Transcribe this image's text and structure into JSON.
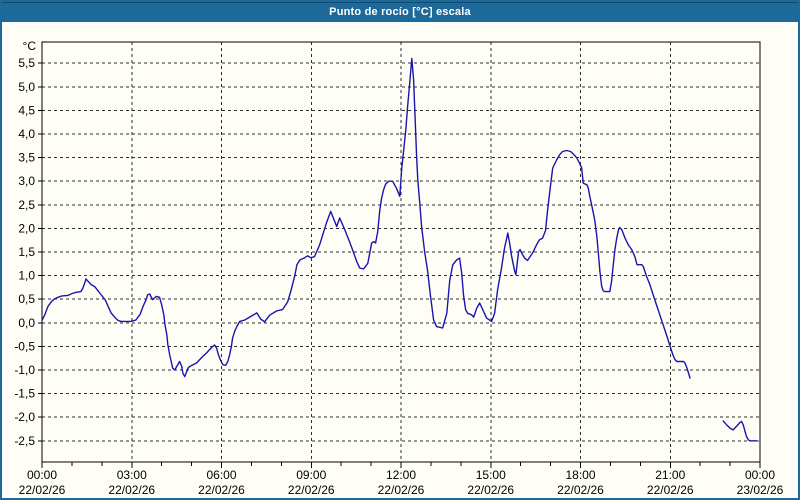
{
  "window": {
    "title": "Punto de rocío [°C] escala"
  },
  "colors": {
    "titlebar_bg": "#1d6a9a",
    "window_border": "#1d6a9a",
    "client_bg": "#fffef6",
    "line": "#1a15ab",
    "grid": "#2e2e2e",
    "axis": "#000000",
    "title_text": "#ffffff",
    "label_text": "#000000"
  },
  "chart_data": {
    "type": "line",
    "title": "Punto de rocío [°C] escala",
    "xlabel": "",
    "ylabel": "°C",
    "xlim": [
      0,
      24
    ],
    "ylim": [
      -2.95,
      5.95
    ],
    "grid": true,
    "legend": false,
    "minor_tick_hours": 1,
    "yticks": [
      {
        "v": 5.5,
        "label": "5,5"
      },
      {
        "v": 5.0,
        "label": "5,0"
      },
      {
        "v": 4.5,
        "label": "4,5"
      },
      {
        "v": 4.0,
        "label": "4,0"
      },
      {
        "v": 3.5,
        "label": "3,5"
      },
      {
        "v": 3.0,
        "label": "3,0"
      },
      {
        "v": 2.5,
        "label": "2,5"
      },
      {
        "v": 2.0,
        "label": "2,0"
      },
      {
        "v": 1.5,
        "label": "1,5"
      },
      {
        "v": 1.0,
        "label": "1,0"
      },
      {
        "v": 0.5,
        "label": "0,5"
      },
      {
        "v": 0.0,
        "label": "0,0"
      },
      {
        "v": -0.5,
        "label": "-0,5"
      },
      {
        "v": -1.0,
        "label": "-1,0"
      },
      {
        "v": -1.5,
        "label": "-1,5"
      },
      {
        "v": -2.0,
        "label": "-2,0"
      },
      {
        "v": -2.5,
        "label": "-2,5"
      }
    ],
    "xticks": [
      {
        "v": 0,
        "time": "00:00",
        "date": "22/02/26"
      },
      {
        "v": 3,
        "time": "03:00",
        "date": "22/02/26"
      },
      {
        "v": 6,
        "time": "06:00",
        "date": "22/02/26"
      },
      {
        "v": 9,
        "time": "09:00",
        "date": "22/02/26"
      },
      {
        "v": 12,
        "time": "12:00",
        "date": "22/02/26"
      },
      {
        "v": 15,
        "time": "15:00",
        "date": "22/02/26"
      },
      {
        "v": 18,
        "time": "18:00",
        "date": "22/02/26"
      },
      {
        "v": 21,
        "time": "21:00",
        "date": "22/02/26"
      },
      {
        "v": 24,
        "time": "00:00",
        "date": "23/02/26"
      }
    ],
    "series": [
      {
        "name": "Punto de rocío",
        "color": "#1a15ab",
        "segments": [
          [
            [
              0.0,
              0.05
            ],
            [
              0.1,
              0.18
            ],
            [
              0.2,
              0.35
            ],
            [
              0.33,
              0.46
            ],
            [
              0.43,
              0.51
            ],
            [
              0.53,
              0.54
            ],
            [
              0.67,
              0.57
            ],
            [
              0.87,
              0.58
            ],
            [
              0.97,
              0.61
            ],
            [
              1.1,
              0.64
            ],
            [
              1.3,
              0.66
            ],
            [
              1.37,
              0.74
            ],
            [
              1.44,
              0.87
            ],
            [
              1.47,
              0.93
            ],
            [
              1.54,
              0.88
            ],
            [
              1.64,
              0.81
            ],
            [
              1.77,
              0.76
            ],
            [
              1.87,
              0.68
            ],
            [
              1.97,
              0.6
            ],
            [
              2.11,
              0.49
            ],
            [
              2.21,
              0.35
            ],
            [
              2.31,
              0.21
            ],
            [
              2.44,
              0.11
            ],
            [
              2.54,
              0.05
            ],
            [
              2.64,
              0.03
            ],
            [
              2.97,
              0.03
            ],
            [
              3.14,
              0.06
            ],
            [
              3.28,
              0.18
            ],
            [
              3.38,
              0.35
            ],
            [
              3.48,
              0.49
            ],
            [
              3.53,
              0.59
            ],
            [
              3.6,
              0.61
            ],
            [
              3.7,
              0.49
            ],
            [
              3.82,
              0.56
            ],
            [
              3.93,
              0.54
            ],
            [
              4.0,
              0.38
            ],
            [
              4.07,
              0.17
            ],
            [
              4.11,
              -0.04
            ],
            [
              4.17,
              -0.25
            ],
            [
              4.21,
              -0.47
            ],
            [
              4.27,
              -0.68
            ],
            [
              4.33,
              -0.85
            ],
            [
              4.37,
              -0.96
            ],
            [
              4.44,
              -1.0
            ],
            [
              4.51,
              -0.92
            ],
            [
              4.6,
              -0.82
            ],
            [
              4.67,
              -0.92
            ],
            [
              4.71,
              -1.07
            ],
            [
              4.77,
              -1.14
            ],
            [
              4.84,
              -1.03
            ],
            [
              4.88,
              -0.96
            ],
            [
              4.95,
              -0.92
            ],
            [
              5.05,
              -0.89
            ],
            [
              5.17,
              -0.85
            ],
            [
              5.27,
              -0.78
            ],
            [
              5.38,
              -0.71
            ],
            [
              5.5,
              -0.64
            ],
            [
              5.6,
              -0.57
            ],
            [
              5.71,
              -0.5
            ],
            [
              5.77,
              -0.47
            ],
            [
              5.84,
              -0.54
            ],
            [
              5.88,
              -0.64
            ],
            [
              5.94,
              -0.75
            ],
            [
              6.01,
              -0.85
            ],
            [
              6.05,
              -0.89
            ],
            [
              6.14,
              -0.9
            ],
            [
              6.21,
              -0.82
            ],
            [
              6.27,
              -0.68
            ],
            [
              6.33,
              -0.5
            ],
            [
              6.37,
              -0.32
            ],
            [
              6.44,
              -0.18
            ],
            [
              6.51,
              -0.08
            ],
            [
              6.61,
              0.03
            ],
            [
              6.78,
              0.06
            ],
            [
              6.94,
              0.12
            ],
            [
              7.18,
              0.21
            ],
            [
              7.31,
              0.08
            ],
            [
              7.44,
              0.02
            ],
            [
              7.61,
              0.16
            ],
            [
              7.84,
              0.25
            ],
            [
              8.04,
              0.28
            ],
            [
              8.21,
              0.44
            ],
            [
              8.33,
              0.7
            ],
            [
              8.45,
              1.0
            ],
            [
              8.52,
              1.23
            ],
            [
              8.62,
              1.33
            ],
            [
              8.78,
              1.38
            ],
            [
              8.88,
              1.42
            ],
            [
              8.98,
              1.38
            ],
            [
              9.11,
              1.4
            ],
            [
              9.28,
              1.65
            ],
            [
              9.51,
              2.12
            ],
            [
              9.65,
              2.36
            ],
            [
              9.78,
              2.15
            ],
            [
              9.85,
              2.04
            ],
            [
              9.95,
              2.22
            ],
            [
              10.12,
              1.97
            ],
            [
              10.28,
              1.72
            ],
            [
              10.38,
              1.55
            ],
            [
              10.52,
              1.3
            ],
            [
              10.62,
              1.16
            ],
            [
              10.75,
              1.14
            ],
            [
              10.89,
              1.26
            ],
            [
              11.02,
              1.69
            ],
            [
              11.09,
              1.72
            ],
            [
              11.15,
              1.69
            ],
            [
              11.22,
              1.93
            ],
            [
              11.29,
              2.39
            ],
            [
              11.35,
              2.64
            ],
            [
              11.42,
              2.82
            ],
            [
              11.49,
              2.94
            ],
            [
              11.59,
              3.0
            ],
            [
              11.72,
              3.0
            ],
            [
              11.85,
              2.85
            ],
            [
              11.96,
              2.68
            ],
            [
              12.02,
              3.24
            ],
            [
              12.09,
              3.66
            ],
            [
              12.16,
              4.09
            ],
            [
              12.22,
              4.58
            ],
            [
              12.29,
              5.08
            ],
            [
              12.36,
              5.6
            ],
            [
              12.42,
              5.15
            ],
            [
              12.46,
              4.51
            ],
            [
              12.49,
              4.02
            ],
            [
              12.52,
              3.52
            ],
            [
              12.56,
              3.03
            ],
            [
              12.62,
              2.6
            ],
            [
              12.69,
              2.04
            ],
            [
              12.79,
              1.51
            ],
            [
              12.89,
              1.1
            ],
            [
              12.99,
              0.55
            ],
            [
              13.09,
              0.06
            ],
            [
              13.19,
              -0.08
            ],
            [
              13.39,
              -0.11
            ],
            [
              13.53,
              0.2
            ],
            [
              13.63,
              0.91
            ],
            [
              13.73,
              1.23
            ],
            [
              13.86,
              1.33
            ],
            [
              13.96,
              1.37
            ],
            [
              14.03,
              1.05
            ],
            [
              14.09,
              0.59
            ],
            [
              14.16,
              0.28
            ],
            [
              14.23,
              0.2
            ],
            [
              14.36,
              0.17
            ],
            [
              14.43,
              0.12
            ],
            [
              14.53,
              0.31
            ],
            [
              14.63,
              0.42
            ],
            [
              14.73,
              0.28
            ],
            [
              14.86,
              0.1
            ],
            [
              15.03,
              0.03
            ],
            [
              15.13,
              0.2
            ],
            [
              15.23,
              0.7
            ],
            [
              15.36,
              1.16
            ],
            [
              15.46,
              1.58
            ],
            [
              15.57,
              1.9
            ],
            [
              15.63,
              1.69
            ],
            [
              15.7,
              1.4
            ],
            [
              15.8,
              1.09
            ],
            [
              15.84,
              1.02
            ],
            [
              15.93,
              1.51
            ],
            [
              15.98,
              1.55
            ],
            [
              16.03,
              1.48
            ],
            [
              16.13,
              1.37
            ],
            [
              16.23,
              1.32
            ],
            [
              16.4,
              1.48
            ],
            [
              16.53,
              1.65
            ],
            [
              16.63,
              1.76
            ],
            [
              16.73,
              1.79
            ],
            [
              16.83,
              1.95
            ],
            [
              16.9,
              2.39
            ],
            [
              17.0,
              2.92
            ],
            [
              17.07,
              3.28
            ],
            [
              17.2,
              3.45
            ],
            [
              17.3,
              3.56
            ],
            [
              17.4,
              3.63
            ],
            [
              17.54,
              3.65
            ],
            [
              17.67,
              3.63
            ],
            [
              17.77,
              3.57
            ],
            [
              17.87,
              3.5
            ],
            [
              17.97,
              3.38
            ],
            [
              18.04,
              3.28
            ],
            [
              18.09,
              2.96
            ],
            [
              18.22,
              2.92
            ],
            [
              18.26,
              2.85
            ],
            [
              18.31,
              2.68
            ],
            [
              18.37,
              2.5
            ],
            [
              18.43,
              2.32
            ],
            [
              18.48,
              2.15
            ],
            [
              18.54,
              1.86
            ],
            [
              18.6,
              1.44
            ],
            [
              18.65,
              1.09
            ],
            [
              18.71,
              0.77
            ],
            [
              18.76,
              0.68
            ],
            [
              18.82,
              0.66
            ],
            [
              18.98,
              0.66
            ],
            [
              19.04,
              0.88
            ],
            [
              19.09,
              1.19
            ],
            [
              19.15,
              1.55
            ],
            [
              19.21,
              1.79
            ],
            [
              19.27,
              1.97
            ],
            [
              19.32,
              2.02
            ],
            [
              19.38,
              1.97
            ],
            [
              19.49,
              1.79
            ],
            [
              19.6,
              1.65
            ],
            [
              19.71,
              1.55
            ],
            [
              19.82,
              1.4
            ],
            [
              19.89,
              1.23
            ],
            [
              20.05,
              1.23
            ],
            [
              20.1,
              1.19
            ],
            [
              20.21,
              0.98
            ],
            [
              20.32,
              0.81
            ],
            [
              20.43,
              0.59
            ],
            [
              20.54,
              0.38
            ],
            [
              20.65,
              0.17
            ],
            [
              20.76,
              -0.04
            ],
            [
              20.87,
              -0.25
            ],
            [
              20.98,
              -0.47
            ],
            [
              21.09,
              -0.68
            ],
            [
              21.16,
              -0.78
            ],
            [
              21.22,
              -0.82
            ],
            [
              21.44,
              -0.82
            ],
            [
              21.49,
              -0.85
            ],
            [
              21.56,
              -0.96
            ],
            [
              21.66,
              -1.17
            ]
          ],
          [
            [
              22.77,
              -2.08
            ],
            [
              22.88,
              -2.16
            ],
            [
              22.99,
              -2.23
            ],
            [
              23.1,
              -2.27
            ],
            [
              23.22,
              -2.19
            ],
            [
              23.33,
              -2.11
            ],
            [
              23.38,
              -2.09
            ],
            [
              23.44,
              -2.16
            ],
            [
              23.5,
              -2.3
            ],
            [
              23.55,
              -2.41
            ],
            [
              23.61,
              -2.48
            ],
            [
              23.66,
              -2.5
            ],
            [
              23.89,
              -2.5
            ]
          ]
        ]
      }
    ]
  }
}
